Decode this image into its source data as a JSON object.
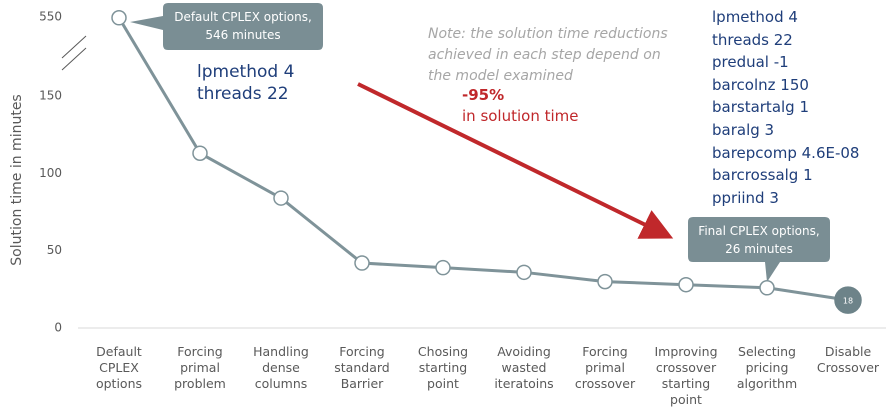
{
  "chart_data": {
    "type": "line",
    "y_label": "Solution time in minutes",
    "categories": [
      "Default CPLEX options",
      "Forcing primal problem",
      "Handling dense columns",
      "Forcing standard Barrier",
      "Chosing starting point",
      "Avoiding wasted iteratoins",
      "Forcing primal crossover",
      "Improving crossover starting point",
      "Selecting pricing algorithm",
      "Disable Crossover"
    ],
    "series": [
      {
        "name": "Solution time",
        "color": "#7f9399",
        "values": [
          546,
          113,
          84,
          42,
          39,
          36,
          30,
          28,
          26,
          18
        ]
      }
    ],
    "ylim": [
      0,
      550
    ],
    "yticks": [
      0,
      50,
      100,
      150,
      550
    ],
    "axis_break": true,
    "annotations": {
      "start_callout": "Default CPLEX options, 546 minutes",
      "end_callout": "Final CPLEX options, 26 minutes",
      "start_params": [
        "lpmethod 4",
        "threads 22"
      ],
      "note": "Note: the solution time reductions achieved in each step depend on the model examined",
      "reduction": "-95%",
      "reduction_text": "in solution time",
      "final_params": [
        "lpmethod 4",
        "threads 22",
        "predual -1",
        "barcolnz 150",
        "barstartalg 1",
        "baralg 3",
        "barepcomp 4.6E-08",
        "barcrossalg 1",
        "ppriind 3"
      ]
    }
  }
}
